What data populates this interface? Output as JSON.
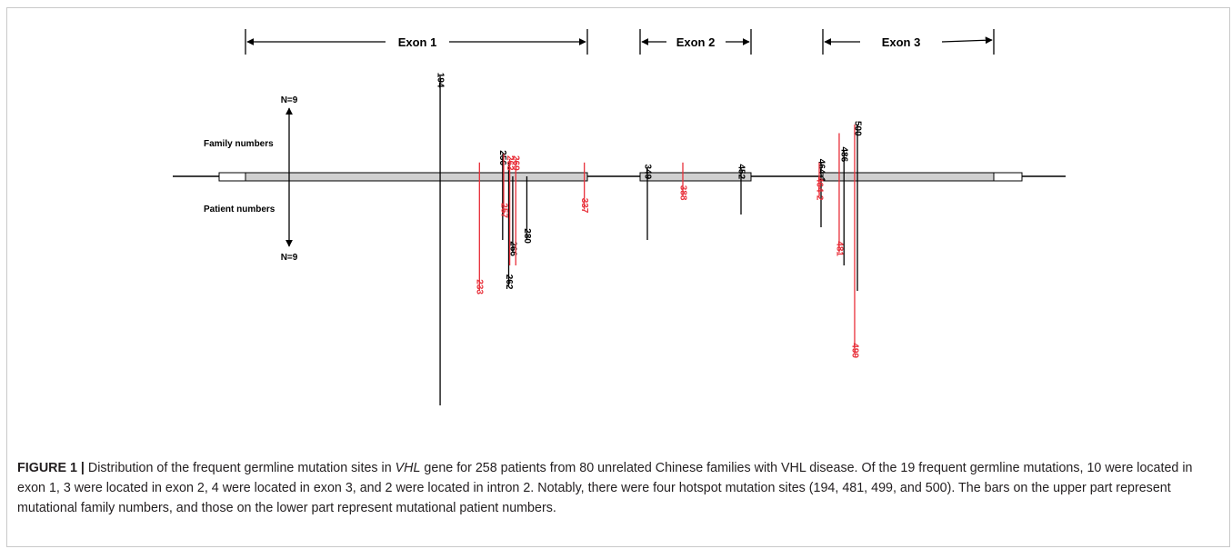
{
  "exons": [
    {
      "label": "Exon 1",
      "start": 1,
      "end": 340
    },
    {
      "label": "Exon 2",
      "start": 341,
      "end": 463
    },
    {
      "label": "Exon 3",
      "start": 464,
      "end": 642
    }
  ],
  "axis": {
    "top_label": "N=9",
    "bottom_label": "N=9",
    "upper_label": "Family numbers",
    "lower_label": "Patient numbers"
  },
  "chart_data": {
    "type": "bar",
    "x_unit": "nucleotide position",
    "legend": "bars above the gene = mutational family numbers; bars below = mutational patient numbers",
    "mutations": [
      {
        "label": "194",
        "family": 5.8,
        "patient": 9.0,
        "color": "#000000",
        "label_side": "top"
      },
      {
        "label": "233",
        "family": 0.8,
        "patient": 4.5,
        "color": "#e8303a",
        "label_side": "bottom"
      },
      {
        "label": "256",
        "family": 1.3,
        "patient": 2.5,
        "color": "#000000",
        "label_side": "top"
      },
      {
        "label": "257",
        "family": 1.3,
        "patient": 1.5,
        "color": "#e8303a",
        "label_side": "bottom"
      },
      {
        "label": "262",
        "family": 0.8,
        "patient": 4.3,
        "color": "#000000",
        "label_side": "bottom"
      },
      {
        "label": "263",
        "family": 1.0,
        "patient": 3.5,
        "color": "#e8303a",
        "label_side": "top"
      },
      {
        "label": "266",
        "family": 0.0,
        "patient": 3.0,
        "color": "#000000",
        "label_side": "bottom"
      },
      {
        "label": "269",
        "family": 1.0,
        "patient": 3.5,
        "color": "#e8303a",
        "label_side": "top"
      },
      {
        "label": "280",
        "family": 0.0,
        "patient": 2.5,
        "color": "#000000",
        "label_side": "bottom"
      },
      {
        "label": "337",
        "family": 0.8,
        "patient": 1.3,
        "color": "#e8303a",
        "label_side": "bottom"
      },
      {
        "label": "349",
        "family": 0.5,
        "patient": 2.5,
        "color": "#000000",
        "label_side": "top"
      },
      {
        "label": "388",
        "family": 0.8,
        "patient": 0.8,
        "color": "#e8303a",
        "label_side": "bottom"
      },
      {
        "label": "452",
        "family": 0.5,
        "patient": 1.5,
        "color": "#000000",
        "label_side": "top"
      },
      {
        "label": "464-1",
        "family": 0.8,
        "patient": 2.0,
        "color": "#000000",
        "label_side": "top"
      },
      {
        "label": "464-2",
        "family": 0.8,
        "patient": 0.8,
        "color": "#e8303a",
        "label_side": "bottom"
      },
      {
        "label": "481",
        "family": 2.5,
        "patient": 3.0,
        "color": "#e8303a",
        "label_side": "bottom"
      },
      {
        "label": "486",
        "family": 1.5,
        "patient": 3.5,
        "color": "#000000",
        "label_side": "top"
      },
      {
        "label": "499",
        "family": 3.0,
        "patient": 7.0,
        "color": "#e8303a",
        "label_side": "bottom"
      },
      {
        "label": "500",
        "family": 3.0,
        "patient": 4.5,
        "color": "#000000",
        "label_side": "top"
      }
    ]
  },
  "caption": {
    "figure_label": "FIGURE 1 |",
    "text_before_gene": " Distribution of the frequent germline mutation sites in ",
    "gene": "VHL",
    "text_after_gene": " gene for 258 patients from 80 unrelated Chinese families with VHL disease. Of the 19 frequent germline mutations, 10 were located in exon 1, 3 were located in exon 2, 4 were located in exon 3, and 2 were located in intron 2. Notably, there were four hotspot mutation sites (194, 481, 499, and 500). The bars on the upper part represent mutational family numbers, and those on the lower part represent mutational patient numbers."
  }
}
